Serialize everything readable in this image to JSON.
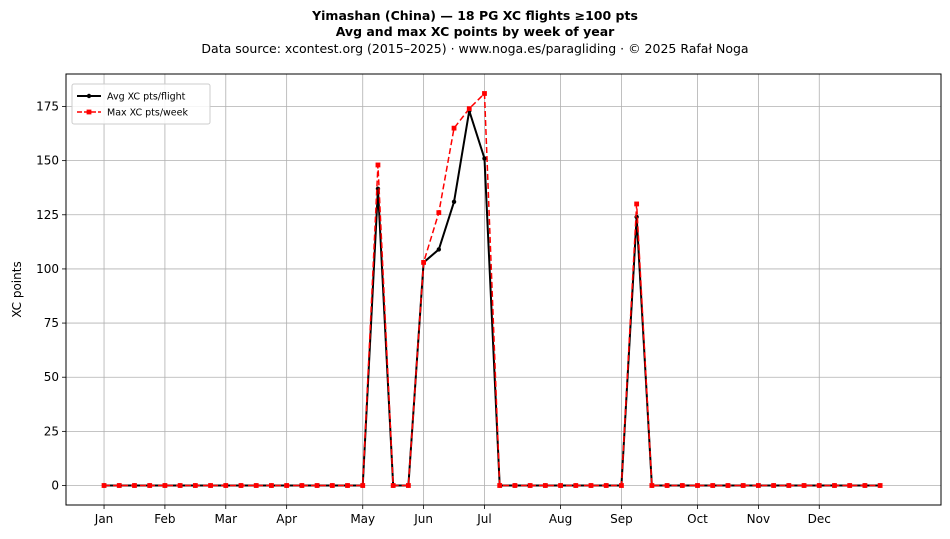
{
  "chart_data": {
    "type": "line",
    "title": "Yimashan (China)  —  18 PG XC flights ≥100 pts",
    "subtitle": "Avg and max XC points by week of year",
    "source_note": "Data source: xcontest.org (2015–2025)  ·  www.noga.es/paragliding  ·  © 2025 Rafał Noga",
    "xlabel": "",
    "ylabel": "XC points",
    "xlim": [
      -2.5,
      55
    ],
    "ylim": [
      -9,
      190
    ],
    "grid": true,
    "legend_position": "top-left",
    "x_ticks": [
      {
        "label": "Jan",
        "week": 0
      },
      {
        "label": "Feb",
        "week": 4
      },
      {
        "label": "Mar",
        "week": 8
      },
      {
        "label": "Apr",
        "week": 12
      },
      {
        "label": "May",
        "week": 17
      },
      {
        "label": "Jun",
        "week": 21
      },
      {
        "label": "Jul",
        "week": 25
      },
      {
        "label": "Aug",
        "week": 30
      },
      {
        "label": "Sep",
        "week": 34
      },
      {
        "label": "Oct",
        "week": 39
      },
      {
        "label": "Nov",
        "week": 43
      },
      {
        "label": "Dec",
        "week": 47
      }
    ],
    "y_ticks": [
      0,
      25,
      50,
      75,
      100,
      125,
      150,
      175
    ],
    "x": [
      0,
      1,
      2,
      3,
      4,
      5,
      6,
      7,
      8,
      9,
      10,
      11,
      12,
      13,
      14,
      15,
      16,
      17,
      18,
      19,
      20,
      21,
      22,
      23,
      24,
      25,
      26,
      27,
      28,
      29,
      30,
      31,
      32,
      33,
      34,
      35,
      36,
      37,
      38,
      39,
      40,
      41,
      42,
      43,
      44,
      45,
      46,
      47,
      48,
      49,
      50,
      51
    ],
    "series": [
      {
        "name": "Avg XC pts/flight",
        "color": "#000000",
        "line_style": "solid",
        "marker": "circle",
        "values": [
          0,
          0,
          0,
          0,
          0,
          0,
          0,
          0,
          0,
          0,
          0,
          0,
          0,
          0,
          0,
          0,
          0,
          0,
          137,
          0,
          0,
          103,
          109,
          131,
          173,
          151,
          0,
          0,
          0,
          0,
          0,
          0,
          0,
          0,
          0,
          124,
          0,
          0,
          0,
          0,
          0,
          0,
          0,
          0,
          0,
          0,
          0,
          0,
          0,
          0,
          0,
          0
        ]
      },
      {
        "name": "Max XC pts/week",
        "color": "#ff0000",
        "line_style": "dashed",
        "marker": "square",
        "values": [
          0,
          0,
          0,
          0,
          0,
          0,
          0,
          0,
          0,
          0,
          0,
          0,
          0,
          0,
          0,
          0,
          0,
          0,
          148,
          0,
          0,
          103,
          126,
          165,
          174,
          181,
          0,
          0,
          0,
          0,
          0,
          0,
          0,
          0,
          0,
          130,
          0,
          0,
          0,
          0,
          0,
          0,
          0,
          0,
          0,
          0,
          0,
          0,
          0,
          0,
          0,
          0
        ]
      }
    ]
  }
}
